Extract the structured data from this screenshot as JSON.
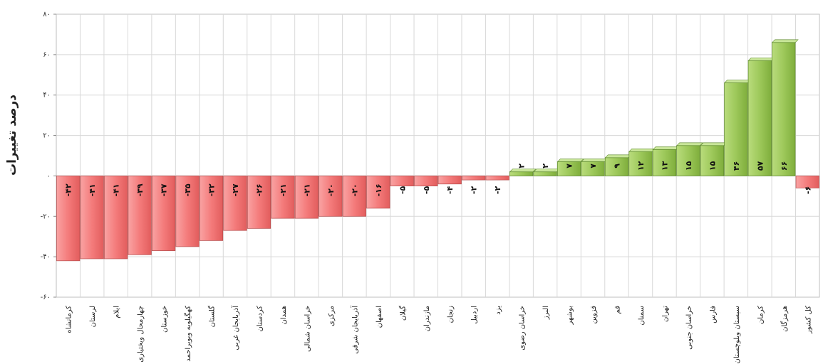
{
  "chart_data": {
    "type": "bar",
    "title": "",
    "xlabel": "",
    "ylabel": "درصد تغییرات",
    "ylim": [
      -60,
      80
    ],
    "yticks": [
      80,
      60,
      40,
      20,
      0,
      -20,
      -40,
      -60
    ],
    "ytick_labels": [
      "۸۰",
      "۶۰",
      "۴۰",
      "۲۰",
      "۰",
      "-۲۰",
      "-۴۰",
      "-۶۰"
    ],
    "grid": true,
    "legend": "none",
    "colors": {
      "negative": "#f47b7b",
      "positive": "#9dc85a",
      "negative_edge": "#b44a4a",
      "positive_edge": "#5d8a2a"
    },
    "categories": [
      "کرمانشاه",
      "لرستان",
      "ایلام",
      "چهارمحال وبختیاری",
      "خوزستان",
      "کهگیلویه وبویراحمد",
      "گلستان",
      "آذربایجان غربی",
      "کردستان",
      "همدان",
      "خراسان شمالی",
      "مرکزی",
      "آذربایجان شرقی",
      "اصفهان",
      "گیلان",
      "مازندران",
      "زنجان",
      "اردبیل",
      "یزد",
      "خراسان رضوی",
      "البرز",
      "بوشهر",
      "قزوین",
      "قم",
      "سمنان",
      "تهران",
      "خراسان جنوبی",
      "فارس",
      "سیستان وبلوچستان",
      "کرمان",
      "هرمزگان",
      "کل کشور"
    ],
    "values": [
      -42,
      -41,
      -41,
      -39,
      -37,
      -35,
      -32,
      -27,
      -26,
      -21,
      -21,
      -20,
      -20,
      -16,
      -5,
      -5,
      -4,
      -2,
      -2,
      2,
      2,
      7,
      7,
      9,
      12,
      13,
      15,
      15,
      46,
      57,
      66,
      -6
    ],
    "data_labels": [
      "-۴۲",
      "-۴۱",
      "-۴۱",
      "-۳۹",
      "-۳۷",
      "-۳۵",
      "-۳۲",
      "-۲۷",
      "-۲۶",
      "-۲۱",
      "-۲۱",
      "-۲۰",
      "-۲۰",
      "-۱۶",
      "-۵",
      "-۵",
      "-۴",
      "-۲",
      "-۲",
      "۲",
      "۲",
      "۷",
      "۷",
      "۹",
      "۱۲",
      "۱۳",
      "۱۵",
      "۱۵",
      "۴۶",
      "۵۷",
      "۶۶",
      "-۶"
    ]
  }
}
